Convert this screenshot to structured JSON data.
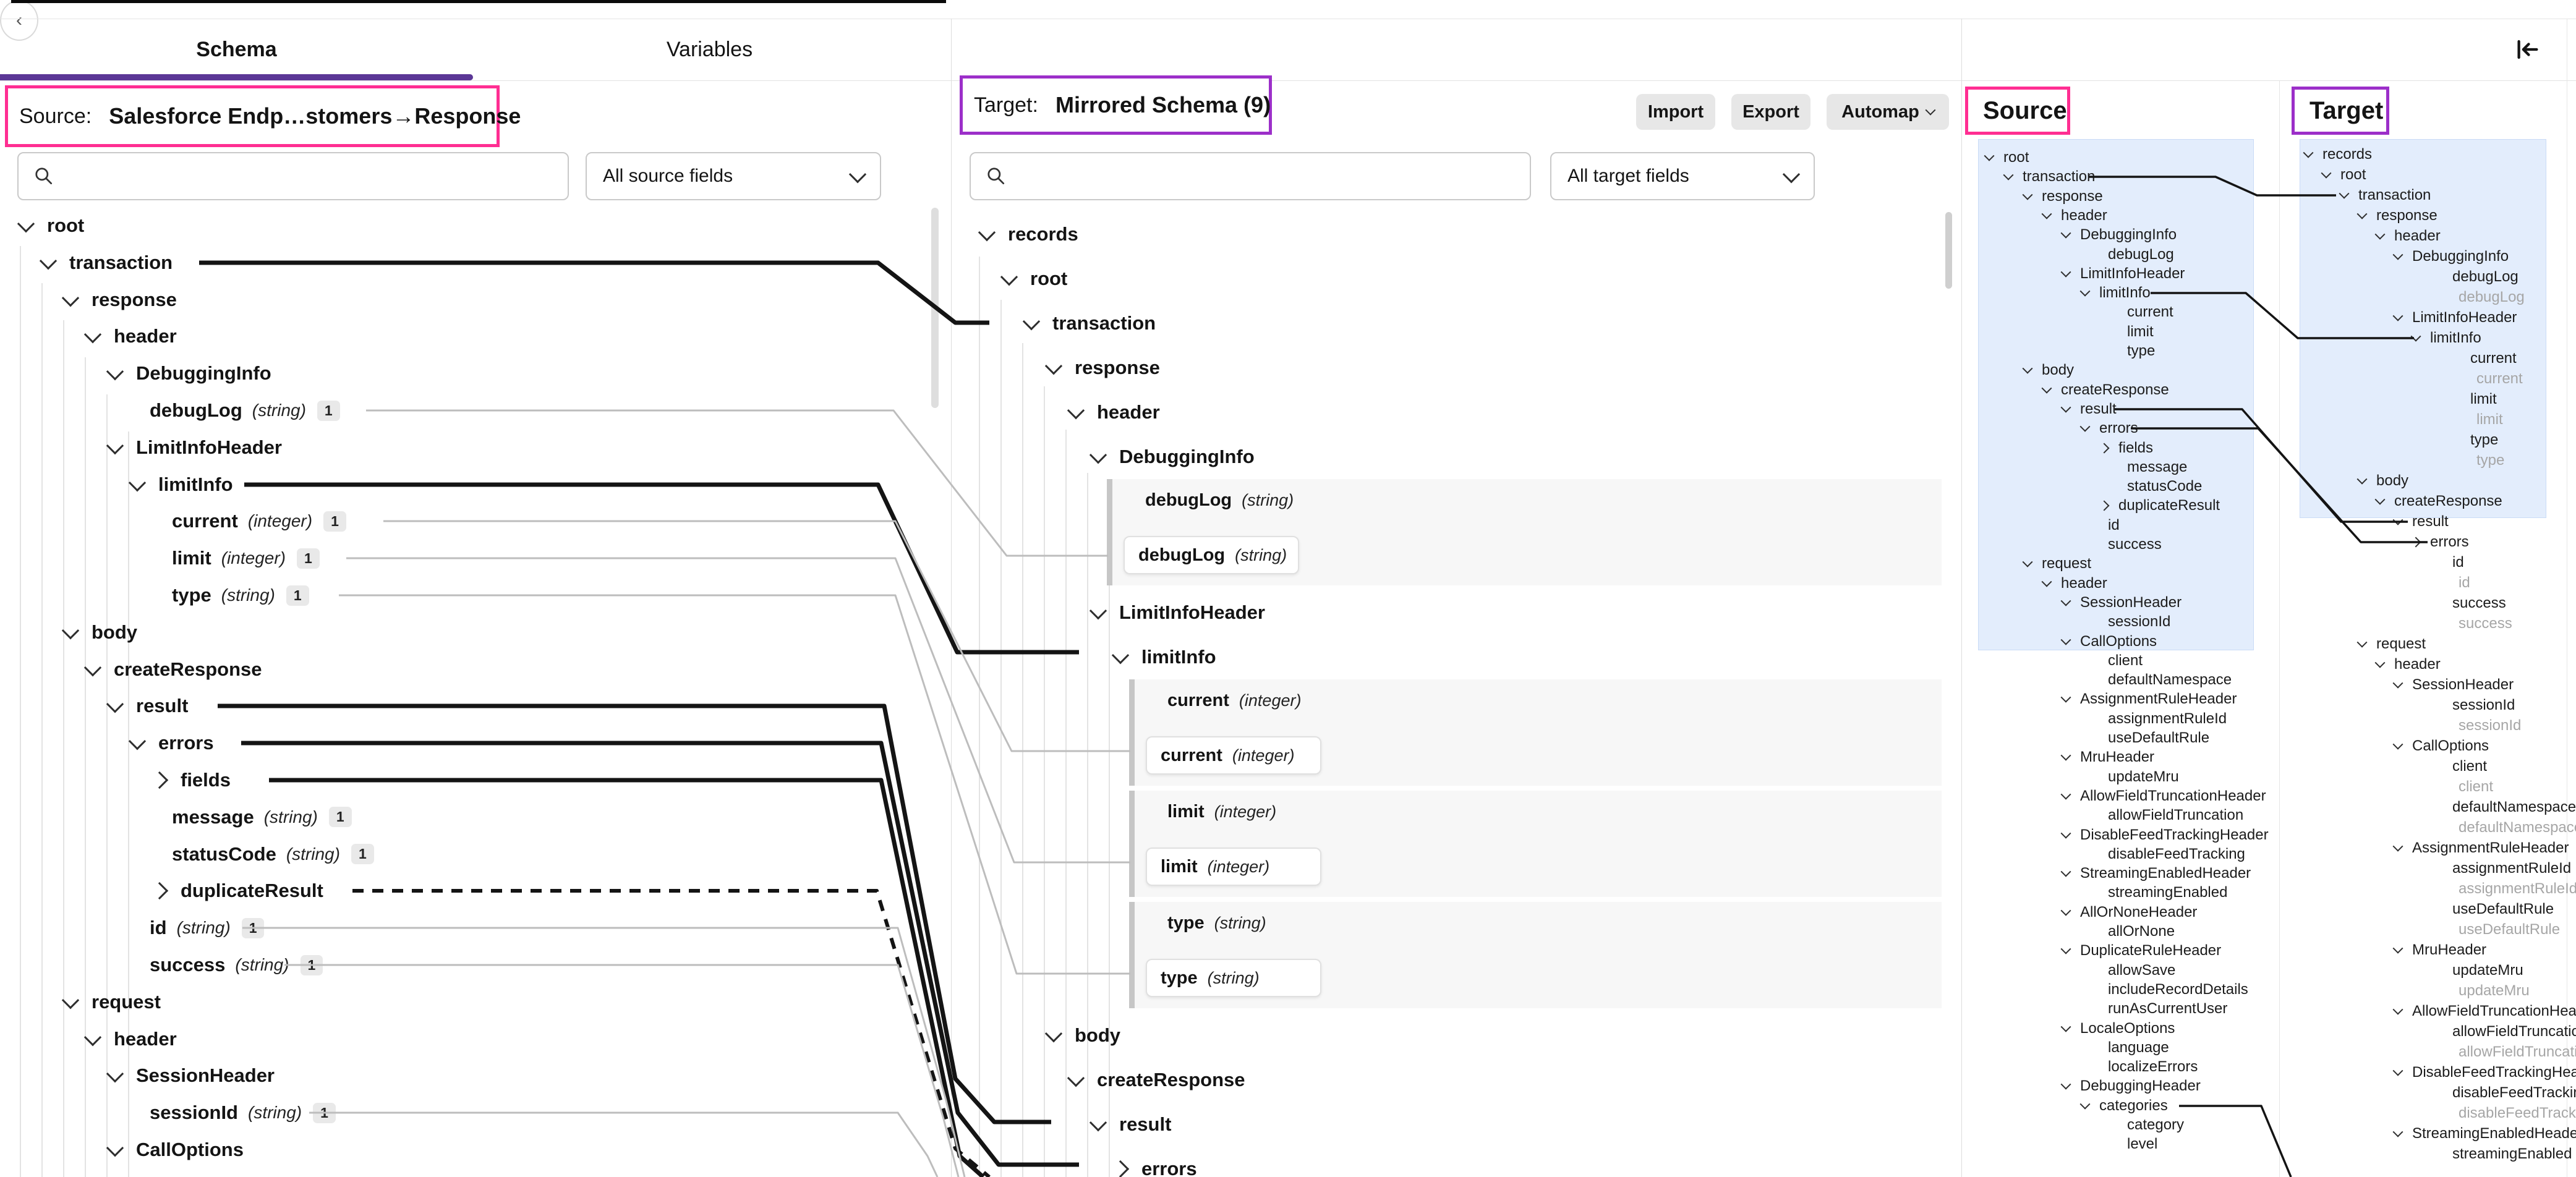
{
  "tabs": {
    "schema": "Schema",
    "variables": "Variables"
  },
  "source_panel": {
    "label_prefix": "Source:",
    "label_value": "Salesforce Endp…stomers→Response",
    "filter_value": "All source fields",
    "tree": [
      {
        "name": "root",
        "depth": 0,
        "state": "open"
      },
      {
        "name": "transaction",
        "depth": 1,
        "state": "open",
        "line": "thick"
      },
      {
        "name": "response",
        "depth": 2,
        "state": "open"
      },
      {
        "name": "header",
        "depth": 3,
        "state": "open"
      },
      {
        "name": "DebuggingInfo",
        "depth": 4,
        "state": "open"
      },
      {
        "name": "debugLog",
        "type": "(string)",
        "badge": "1",
        "depth": 5,
        "state": "leaf",
        "line": "thin"
      },
      {
        "name": "LimitInfoHeader",
        "depth": 4,
        "state": "open"
      },
      {
        "name": "limitInfo",
        "depth": 5,
        "state": "open",
        "line": "thick"
      },
      {
        "name": "current",
        "type": "(integer)",
        "badge": "1",
        "depth": 6,
        "state": "leaf",
        "line": "thin"
      },
      {
        "name": "limit",
        "type": "(integer)",
        "badge": "1",
        "depth": 6,
        "state": "leaf",
        "line": "thin"
      },
      {
        "name": "type",
        "type": "(string)",
        "badge": "1",
        "depth": 6,
        "state": "leaf",
        "line": "thin"
      },
      {
        "name": "body",
        "depth": 2,
        "state": "open"
      },
      {
        "name": "createResponse",
        "depth": 3,
        "state": "open"
      },
      {
        "name": "result",
        "depth": 4,
        "state": "open",
        "line": "thick"
      },
      {
        "name": "errors",
        "depth": 5,
        "state": "open",
        "line": "thick"
      },
      {
        "name": "fields",
        "depth": 6,
        "state": "closed",
        "line": "thick"
      },
      {
        "name": "message",
        "type": "(string)",
        "badge": "1",
        "depth": 6,
        "state": "leaf"
      },
      {
        "name": "statusCode",
        "type": "(string)",
        "badge": "1",
        "depth": 6,
        "state": "leaf"
      },
      {
        "name": "duplicateResult",
        "depth": 6,
        "state": "closed",
        "line": "dashed"
      },
      {
        "name": "id",
        "type": "(string)",
        "badge": "1",
        "depth": 5,
        "state": "leaf",
        "line": "thin"
      },
      {
        "name": "success",
        "type": "(string)",
        "badge": "1",
        "depth": 5,
        "state": "leaf",
        "line": "thin"
      },
      {
        "name": "request",
        "depth": 2,
        "state": "open"
      },
      {
        "name": "header",
        "depth": 3,
        "state": "open"
      },
      {
        "name": "SessionHeader",
        "depth": 4,
        "state": "open"
      },
      {
        "name": "sessionId",
        "type": "(string)",
        "badge": "1",
        "depth": 5,
        "state": "leaf",
        "line": "thin"
      },
      {
        "name": "CallOptions",
        "depth": 4,
        "state": "open"
      }
    ]
  },
  "target_panel": {
    "label_prefix": "Target:",
    "label_value": "Mirrored Schema (9)",
    "buttons": {
      "import": "Import",
      "export": "Export",
      "automap": "Automap"
    },
    "filter_value": "All target fields",
    "tree": [
      {
        "kind": "node",
        "name": "records",
        "depth": 0,
        "state": "open"
      },
      {
        "kind": "node",
        "name": "root",
        "depth": 1,
        "state": "open"
      },
      {
        "kind": "node",
        "name": "transaction",
        "depth": 2,
        "state": "open"
      },
      {
        "kind": "node",
        "name": "response",
        "depth": 3,
        "state": "open"
      },
      {
        "kind": "node",
        "name": "header",
        "depth": 4,
        "state": "open"
      },
      {
        "kind": "node",
        "name": "DebuggingInfo",
        "depth": 5,
        "state": "open"
      },
      {
        "kind": "block",
        "name": "debugLog",
        "type": "(string)",
        "depth": 6
      },
      {
        "kind": "node",
        "name": "LimitInfoHeader",
        "depth": 5,
        "state": "open"
      },
      {
        "kind": "node",
        "name": "limitInfo",
        "depth": 6,
        "state": "open"
      },
      {
        "kind": "block",
        "name": "current",
        "type": "(integer)",
        "depth": 7
      },
      {
        "kind": "block",
        "name": "limit",
        "type": "(integer)",
        "depth": 7
      },
      {
        "kind": "block",
        "name": "type",
        "type": "(string)",
        "depth": 7
      },
      {
        "kind": "node",
        "name": "body",
        "depth": 3,
        "state": "open"
      },
      {
        "kind": "node",
        "name": "createResponse",
        "depth": 4,
        "state": "open"
      },
      {
        "kind": "node",
        "name": "result",
        "depth": 5,
        "state": "open"
      },
      {
        "kind": "node",
        "name": "errors",
        "depth": 6,
        "state": "closed"
      }
    ]
  },
  "minimap": {
    "source_label": "Source",
    "target_label": "Target",
    "source_tree": [
      {
        "name": "root",
        "depth": 0,
        "state": "open"
      },
      {
        "name": "transaction",
        "depth": 1,
        "state": "open"
      },
      {
        "name": "response",
        "depth": 2,
        "state": "open"
      },
      {
        "name": "header",
        "depth": 3,
        "state": "open"
      },
      {
        "name": "DebuggingInfo",
        "depth": 4,
        "state": "open"
      },
      {
        "name": "debugLog",
        "depth": 5,
        "state": "leaf"
      },
      {
        "name": "LimitInfoHeader",
        "depth": 4,
        "state": "open"
      },
      {
        "name": "limitInfo",
        "depth": 5,
        "state": "open"
      },
      {
        "name": "current",
        "depth": 6,
        "state": "leaf"
      },
      {
        "name": "limit",
        "depth": 6,
        "state": "leaf"
      },
      {
        "name": "type",
        "depth": 6,
        "state": "leaf"
      },
      {
        "name": "body",
        "depth": 2,
        "state": "open"
      },
      {
        "name": "createResponse",
        "depth": 3,
        "state": "open"
      },
      {
        "name": "result",
        "depth": 4,
        "state": "open"
      },
      {
        "name": "errors",
        "depth": 5,
        "state": "open"
      },
      {
        "name": "fields",
        "depth": 6,
        "state": "closed"
      },
      {
        "name": "message",
        "depth": 6,
        "state": "leaf"
      },
      {
        "name": "statusCode",
        "depth": 6,
        "state": "leaf"
      },
      {
        "name": "duplicateResult",
        "depth": 6,
        "state": "closed"
      },
      {
        "name": "id",
        "depth": 5,
        "state": "leaf"
      },
      {
        "name": "success",
        "depth": 5,
        "state": "leaf"
      },
      {
        "name": "request",
        "depth": 2,
        "state": "open"
      },
      {
        "name": "header",
        "depth": 3,
        "state": "open"
      },
      {
        "name": "SessionHeader",
        "depth": 4,
        "state": "open"
      },
      {
        "name": "sessionId",
        "depth": 5,
        "state": "leaf"
      },
      {
        "name": "CallOptions",
        "depth": 4,
        "state": "open"
      },
      {
        "name": "client",
        "depth": 5,
        "state": "leaf"
      },
      {
        "name": "defaultNamespace",
        "depth": 5,
        "state": "leaf"
      },
      {
        "name": "AssignmentRuleHeader",
        "depth": 4,
        "state": "open"
      },
      {
        "name": "assignmentRuleId",
        "depth": 5,
        "state": "leaf"
      },
      {
        "name": "useDefaultRule",
        "depth": 5,
        "state": "leaf"
      },
      {
        "name": "MruHeader",
        "depth": 4,
        "state": "open"
      },
      {
        "name": "updateMru",
        "depth": 5,
        "state": "leaf"
      },
      {
        "name": "AllowFieldTruncationHeader",
        "depth": 4,
        "state": "open"
      },
      {
        "name": "allowFieldTruncation",
        "depth": 5,
        "state": "leaf"
      },
      {
        "name": "DisableFeedTrackingHeader",
        "depth": 4,
        "state": "open"
      },
      {
        "name": "disableFeedTracking",
        "depth": 5,
        "state": "leaf"
      },
      {
        "name": "StreamingEnabledHeader",
        "depth": 4,
        "state": "open"
      },
      {
        "name": "streamingEnabled",
        "depth": 5,
        "state": "leaf"
      },
      {
        "name": "AllOrNoneHeader",
        "depth": 4,
        "state": "open"
      },
      {
        "name": "allOrNone",
        "depth": 5,
        "state": "leaf"
      },
      {
        "name": "DuplicateRuleHeader",
        "depth": 4,
        "state": "open"
      },
      {
        "name": "allowSave",
        "depth": 5,
        "state": "leaf"
      },
      {
        "name": "includeRecordDetails",
        "depth": 5,
        "state": "leaf"
      },
      {
        "name": "runAsCurrentUser",
        "depth": 5,
        "state": "leaf"
      },
      {
        "name": "LocaleOptions",
        "depth": 4,
        "state": "open"
      },
      {
        "name": "language",
        "depth": 5,
        "state": "leaf"
      },
      {
        "name": "localizeErrors",
        "depth": 5,
        "state": "leaf"
      },
      {
        "name": "DebuggingHeader",
        "depth": 4,
        "state": "open"
      },
      {
        "name": "categories",
        "depth": 5,
        "state": "open"
      },
      {
        "name": "category",
        "depth": 6,
        "state": "leaf"
      },
      {
        "name": "level",
        "depth": 6,
        "state": "leaf"
      }
    ],
    "target_tree": [
      {
        "name": "records",
        "depth": 0,
        "state": "open"
      },
      {
        "name": "root",
        "depth": 1,
        "state": "open"
      },
      {
        "name": "transaction",
        "depth": 2,
        "state": "open"
      },
      {
        "name": "response",
        "depth": 3,
        "state": "open"
      },
      {
        "name": "header",
        "depth": 4,
        "state": "open"
      },
      {
        "name": "DebuggingInfo",
        "depth": 5,
        "state": "open"
      },
      {
        "name": "debugLog",
        "depth": 6,
        "state": "leaf"
      },
      {
        "name": "debugLog",
        "depth": 6,
        "state": "leaf",
        "gray": true
      },
      {
        "name": "LimitInfoHeader",
        "depth": 5,
        "state": "open"
      },
      {
        "name": "limitInfo",
        "depth": 6,
        "state": "open"
      },
      {
        "name": "current",
        "depth": 7,
        "state": "leaf"
      },
      {
        "name": "current",
        "depth": 7,
        "state": "leaf",
        "gray": true
      },
      {
        "name": "limit",
        "depth": 7,
        "state": "leaf"
      },
      {
        "name": "limit",
        "depth": 7,
        "state": "leaf",
        "gray": true
      },
      {
        "name": "type",
        "depth": 7,
        "state": "leaf"
      },
      {
        "name": "type",
        "depth": 7,
        "state": "leaf",
        "gray": true
      },
      {
        "name": "body",
        "depth": 3,
        "state": "open"
      },
      {
        "name": "createResponse",
        "depth": 4,
        "state": "open"
      },
      {
        "name": "result",
        "depth": 5,
        "state": "open"
      },
      {
        "name": "errors",
        "depth": 6,
        "state": "closed"
      },
      {
        "name": "id",
        "depth": 6,
        "state": "leaf"
      },
      {
        "name": "id",
        "depth": 6,
        "state": "leaf",
        "gray": true
      },
      {
        "name": "success",
        "depth": 6,
        "state": "leaf"
      },
      {
        "name": "success",
        "depth": 6,
        "state": "leaf",
        "gray": true
      },
      {
        "name": "request",
        "depth": 3,
        "state": "open"
      },
      {
        "name": "header",
        "depth": 4,
        "state": "open"
      },
      {
        "name": "SessionHeader",
        "depth": 5,
        "state": "open"
      },
      {
        "name": "sessionId",
        "depth": 6,
        "state": "leaf"
      },
      {
        "name": "sessionId",
        "depth": 6,
        "state": "leaf",
        "gray": true
      },
      {
        "name": "CallOptions",
        "depth": 5,
        "state": "open"
      },
      {
        "name": "client",
        "depth": 6,
        "state": "leaf"
      },
      {
        "name": "client",
        "depth": 6,
        "state": "leaf",
        "gray": true
      },
      {
        "name": "defaultNamespace",
        "depth": 6,
        "state": "leaf"
      },
      {
        "name": "defaultNamespace",
        "depth": 6,
        "state": "leaf",
        "gray": true
      },
      {
        "name": "AssignmentRuleHeader",
        "depth": 5,
        "state": "open"
      },
      {
        "name": "assignmentRuleId",
        "depth": 6,
        "state": "leaf"
      },
      {
        "name": "assignmentRuleId",
        "depth": 6,
        "state": "leaf",
        "gray": true
      },
      {
        "name": "useDefaultRule",
        "depth": 6,
        "state": "leaf"
      },
      {
        "name": "useDefaultRule",
        "depth": 6,
        "state": "leaf",
        "gray": true
      },
      {
        "name": "MruHeader",
        "depth": 5,
        "state": "open"
      },
      {
        "name": "updateMru",
        "depth": 6,
        "state": "leaf"
      },
      {
        "name": "updateMru",
        "depth": 6,
        "state": "leaf",
        "gray": true
      },
      {
        "name": "AllowFieldTruncationHeader",
        "depth": 5,
        "state": "open"
      },
      {
        "name": "allowFieldTruncation",
        "depth": 6,
        "state": "leaf"
      },
      {
        "name": "allowFieldTruncation",
        "depth": 6,
        "state": "leaf",
        "gray": true
      },
      {
        "name": "DisableFeedTrackingHeader",
        "depth": 5,
        "state": "open"
      },
      {
        "name": "disableFeedTracking",
        "depth": 6,
        "state": "leaf"
      },
      {
        "name": "disableFeedTracking",
        "depth": 6,
        "state": "leaf",
        "gray": true
      },
      {
        "name": "StreamingEnabledHeader",
        "depth": 5,
        "state": "open"
      },
      {
        "name": "streamingEnabled",
        "depth": 6,
        "state": "leaf"
      }
    ]
  },
  "colors": {
    "tab_accent": "#5b3796",
    "source_accent": "#ff2e92",
    "target_accent": "#9c2fc9",
    "viewport_blue": "#e3edfc",
    "mapping_line": "#141414",
    "leaf_line": "#bdbdbd"
  }
}
